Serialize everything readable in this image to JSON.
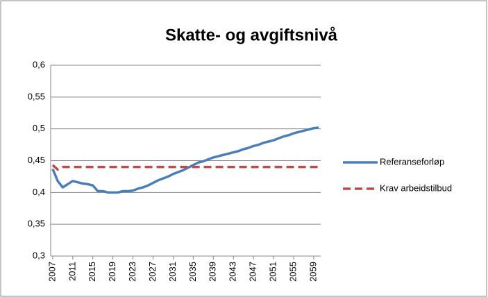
{
  "chart_data": {
    "type": "line",
    "title": "Skatte- og avgiftsnivå",
    "x": [
      2007,
      2008,
      2009,
      2010,
      2011,
      2012,
      2013,
      2014,
      2015,
      2016,
      2017,
      2018,
      2019,
      2020,
      2021,
      2022,
      2023,
      2024,
      2025,
      2026,
      2027,
      2028,
      2029,
      2030,
      2031,
      2032,
      2033,
      2034,
      2035,
      2036,
      2037,
      2038,
      2039,
      2040,
      2041,
      2042,
      2043,
      2044,
      2045,
      2046,
      2047,
      2048,
      2049,
      2050,
      2051,
      2052,
      2053,
      2054,
      2055,
      2056,
      2057,
      2058,
      2059,
      2060
    ],
    "series": [
      {
        "name": "Referanseforløp",
        "color": "#4a7ebb",
        "dash": false,
        "values": [
          0.437,
          0.418,
          0.408,
          0.413,
          0.418,
          0.416,
          0.414,
          0.413,
          0.411,
          0.402,
          0.402,
          0.4,
          0.4,
          0.4,
          0.402,
          0.402,
          0.403,
          0.406,
          0.408,
          0.411,
          0.415,
          0.419,
          0.422,
          0.425,
          0.429,
          0.432,
          0.435,
          0.439,
          0.443,
          0.447,
          0.449,
          0.452,
          0.455,
          0.457,
          0.459,
          0.461,
          0.463,
          0.465,
          0.468,
          0.47,
          0.473,
          0.475,
          0.478,
          0.48,
          0.482,
          0.485,
          0.488,
          0.49,
          0.493,
          0.495,
          0.497,
          0.499,
          0.501,
          0.502
        ]
      },
      {
        "name": "Krav arbeidstilbud",
        "color": "#be4b48",
        "dash": true,
        "values": [
          0.443,
          0.436,
          0.44,
          0.44,
          0.44,
          0.44,
          0.44,
          0.44,
          0.44,
          0.44,
          0.44,
          0.44,
          0.44,
          0.44,
          0.44,
          0.44,
          0.44,
          0.44,
          0.44,
          0.44,
          0.44,
          0.44,
          0.44,
          0.44,
          0.44,
          0.44,
          0.44,
          0.44,
          0.44,
          0.44,
          0.44,
          0.44,
          0.44,
          0.44,
          0.44,
          0.44,
          0.44,
          0.44,
          0.44,
          0.44,
          0.44,
          0.44,
          0.44,
          0.44,
          0.44,
          0.44,
          0.44,
          0.44,
          0.44,
          0.44,
          0.44,
          0.44,
          0.44,
          0.44
        ]
      }
    ],
    "xlim": [
      2006.6,
      2060.4
    ],
    "xticks": [
      2007,
      2011,
      2015,
      2019,
      2023,
      2027,
      2031,
      2035,
      2039,
      2043,
      2047,
      2051,
      2055,
      2059
    ],
    "ylim": [
      0.3,
      0.6
    ],
    "yticks": [
      {
        "value": 0.3,
        "label": "0,3"
      },
      {
        "value": 0.35,
        "label": "0,35"
      },
      {
        "value": 0.4,
        "label": "0,4"
      },
      {
        "value": 0.45,
        "label": "0,45"
      },
      {
        "value": 0.5,
        "label": "0,5"
      },
      {
        "value": 0.55,
        "label": "0,55"
      },
      {
        "value": 0.6,
        "label": "0,6"
      }
    ],
    "grid": true,
    "legend": "right"
  }
}
